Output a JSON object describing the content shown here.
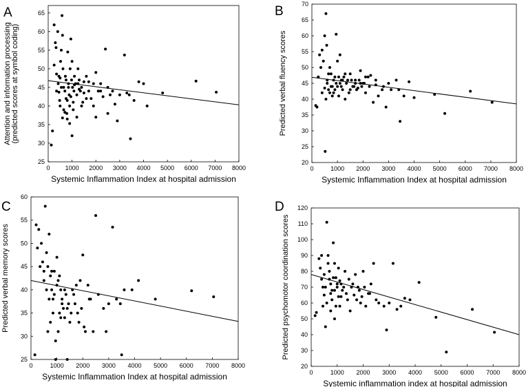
{
  "chart_data": [
    {
      "type": "scatter",
      "panel_label": "A",
      "xlabel": "Systemic Inflammation Index at hospital admission",
      "ylabel_lines": [
        "Attention and information processing",
        "(predicted scores at symbol coding)"
      ],
      "xlim": [
        0,
        8000
      ],
      "ylim": [
        25,
        67
      ],
      "xticks": [
        0,
        1000,
        2000,
        3000,
        4000,
        5000,
        6000,
        7000,
        8000
      ],
      "yticks": [
        25,
        30,
        35,
        40,
        45,
        50,
        55,
        60,
        65
      ],
      "trendline": {
        "x": [
          0,
          8000
        ],
        "y": [
          46.8,
          40.3
        ]
      },
      "points": [
        [
          130,
          29.5
        ],
        [
          180,
          33.3
        ],
        [
          250,
          61.8
        ],
        [
          300,
          57
        ],
        [
          330,
          55.7
        ],
        [
          350,
          48.6
        ],
        [
          250,
          51
        ],
        [
          400,
          60
        ],
        [
          420,
          46
        ],
        [
          450,
          43.7
        ],
        [
          480,
          41.5
        ],
        [
          500,
          47.5
        ],
        [
          520,
          52
        ],
        [
          550,
          55
        ],
        [
          580,
          64.3
        ],
        [
          600,
          59
        ],
        [
          620,
          50
        ],
        [
          650,
          45
        ],
        [
          700,
          44
        ],
        [
          720,
          48
        ],
        [
          750,
          42
        ],
        [
          780,
          38
        ],
        [
          800,
          36.5
        ],
        [
          820,
          54.5
        ],
        [
          850,
          46
        ],
        [
          880,
          43
        ],
        [
          900,
          40
        ],
        [
          920,
          50
        ],
        [
          950,
          58
        ],
        [
          980,
          47
        ],
        [
          1000,
          52
        ],
        [
          1020,
          45
        ],
        [
          1050,
          39
        ],
        [
          1080,
          44
        ],
        [
          1100,
          48
        ],
        [
          1150,
          46
        ],
        [
          1200,
          43
        ],
        [
          1250,
          50
        ],
        [
          1300,
          47
        ],
        [
          1350,
          44
        ],
        [
          1400,
          45
        ],
        [
          1450,
          41
        ],
        [
          1500,
          46.5
        ],
        [
          1600,
          48
        ],
        [
          1700,
          44
        ],
        [
          1800,
          42
        ],
        [
          1900,
          46
        ],
        [
          2000,
          49
        ],
        [
          2100,
          44
        ],
        [
          2200,
          46
        ],
        [
          2300,
          42.5
        ],
        [
          2400,
          55.3
        ],
        [
          2500,
          45
        ],
        [
          2600,
          43
        ],
        [
          2700,
          44
        ],
        [
          2800,
          40.5
        ],
        [
          2900,
          36
        ],
        [
          3000,
          43
        ],
        [
          3200,
          53.7
        ],
        [
          3300,
          43.5
        ],
        [
          3400,
          43
        ],
        [
          3450,
          31.2
        ],
        [
          3600,
          41.5
        ],
        [
          3800,
          46.5
        ],
        [
          4000,
          46
        ],
        [
          4150,
          40
        ],
        [
          4800,
          43.5
        ],
        [
          6200,
          46.7
        ],
        [
          7050,
          43.7
        ],
        [
          600,
          36.8
        ],
        [
          700,
          38.3
        ],
        [
          900,
          35.3
        ],
        [
          1000,
          32
        ],
        [
          1200,
          37
        ],
        [
          1400,
          40
        ],
        [
          2000,
          37
        ],
        [
          2500,
          38
        ],
        [
          500,
          40
        ],
        [
          650,
          39
        ],
        [
          800,
          41.5
        ],
        [
          950,
          42.5
        ],
        [
          1100,
          45.7
        ],
        [
          1300,
          44.5
        ],
        [
          1600,
          42
        ],
        [
          1900,
          40
        ],
        [
          2200,
          44
        ],
        [
          350,
          44
        ],
        [
          450,
          48
        ],
        [
          550,
          45
        ],
        [
          750,
          47
        ],
        [
          850,
          45
        ],
        [
          1050,
          41
        ],
        [
          1250,
          46
        ],
        [
          1500,
          43.5
        ],
        [
          1700,
          46.5
        ]
      ]
    },
    {
      "type": "scatter",
      "panel_label": "B",
      "xlabel": "Systemic Inflammation Index at hospital admission",
      "ylabel_lines": [
        "Predicted verbal fluency scores"
      ],
      "xlim": [
        0,
        8000
      ],
      "ylim": [
        20,
        70
      ],
      "xticks": [
        0,
        1000,
        2000,
        3000,
        4000,
        5000,
        6000,
        7000,
        8000
      ],
      "yticks": [
        20,
        25,
        30,
        35,
        40,
        45,
        50,
        55,
        60,
        65,
        70
      ],
      "trendline": {
        "x": [
          0,
          8000
        ],
        "y": [
          46.9,
          38.5
        ]
      },
      "points": [
        [
          150,
          38
        ],
        [
          200,
          37.5
        ],
        [
          250,
          47
        ],
        [
          300,
          54
        ],
        [
          350,
          50
        ],
        [
          400,
          55.5
        ],
        [
          450,
          52
        ],
        [
          500,
          60
        ],
        [
          520,
          23.5
        ],
        [
          550,
          67
        ],
        [
          580,
          57
        ],
        [
          600,
          45
        ],
        [
          650,
          43
        ],
        [
          700,
          50
        ],
        [
          750,
          48
        ],
        [
          800,
          44
        ],
        [
          850,
          46
        ],
        [
          900,
          43
        ],
        [
          950,
          60.5
        ],
        [
          1000,
          52
        ],
        [
          1050,
          47
        ],
        [
          1100,
          45
        ],
        [
          1150,
          44
        ],
        [
          1200,
          43
        ],
        [
          1300,
          40
        ],
        [
          1400,
          46
        ],
        [
          1500,
          48
        ],
        [
          1600,
          44
        ],
        [
          1700,
          45
        ],
        [
          1800,
          43.5
        ],
        [
          1900,
          49
        ],
        [
          2000,
          45
        ],
        [
          2100,
          42
        ],
        [
          2200,
          47
        ],
        [
          2300,
          47.5
        ],
        [
          2400,
          39
        ],
        [
          2500,
          44.5
        ],
        [
          2600,
          41
        ],
        [
          2800,
          44
        ],
        [
          2900,
          37.5
        ],
        [
          3000,
          45
        ],
        [
          3100,
          43
        ],
        [
          3300,
          46
        ],
        [
          3400,
          43
        ],
        [
          3450,
          33
        ],
        [
          3600,
          41
        ],
        [
          3800,
          45.5
        ],
        [
          4000,
          40.5
        ],
        [
          4800,
          41.5
        ],
        [
          5200,
          35.5
        ],
        [
          6200,
          42.5
        ],
        [
          7050,
          39
        ],
        [
          500,
          43.5
        ],
        [
          600,
          46
        ],
        [
          700,
          42
        ],
        [
          800,
          41
        ],
        [
          900,
          47
        ],
        [
          1000,
          44
        ],
        [
          1100,
          54
        ],
        [
          1200,
          46
        ],
        [
          1300,
          48
        ],
        [
          1500,
          43
        ],
        [
          1700,
          46
        ],
        [
          1900,
          45
        ],
        [
          2100,
          47
        ],
        [
          400,
          42
        ],
        [
          550,
          40
        ],
        [
          650,
          48
        ],
        [
          750,
          44
        ],
        [
          850,
          42
        ],
        [
          950,
          45
        ],
        [
          1050,
          41
        ],
        [
          1150,
          46
        ],
        [
          1250,
          47
        ],
        [
          1350,
          45
        ],
        [
          1450,
          42
        ],
        [
          1550,
          46
        ],
        [
          1650,
          44
        ],
        [
          1750,
          43
        ],
        [
          1850,
          46
        ],
        [
          1950,
          44
        ],
        [
          2050,
          45
        ],
        [
          2250,
          44
        ],
        [
          2500,
          46
        ],
        [
          2750,
          43
        ]
      ]
    },
    {
      "type": "scatter",
      "panel_label": "C",
      "xlabel": "Systemic Inflammation Index at hospital admission",
      "ylabel_lines": [
        "Predicted verbal memory scores"
      ],
      "xlim": [
        0,
        8000
      ],
      "ylim": [
        25,
        60
      ],
      "xticks": [
        0,
        1000,
        2000,
        3000,
        4000,
        5000,
        6000,
        7000,
        8000
      ],
      "yticks": [
        25,
        30,
        35,
        40,
        45,
        50,
        55,
        60
      ],
      "trendline": {
        "x": [
          0,
          8000
        ],
        "y": [
          42,
          33.2
        ]
      },
      "points": [
        [
          150,
          26
        ],
        [
          200,
          54
        ],
        [
          250,
          49
        ],
        [
          300,
          53
        ],
        [
          350,
          45
        ],
        [
          400,
          50
        ],
        [
          450,
          46
        ],
        [
          500,
          42
        ],
        [
          550,
          58
        ],
        [
          600,
          48
        ],
        [
          650,
          45
        ],
        [
          700,
          52
        ],
        [
          750,
          43
        ],
        [
          800,
          40
        ],
        [
          850,
          38
        ],
        [
          900,
          44
        ],
        [
          950,
          25
        ],
        [
          1000,
          47
        ],
        [
          1050,
          42
        ],
        [
          1100,
          35
        ],
        [
          1150,
          40
        ],
        [
          1200,
          38
        ],
        [
          1300,
          34
        ],
        [
          1400,
          25
        ],
        [
          1500,
          33
        ],
        [
          1600,
          40
        ],
        [
          1700,
          37
        ],
        [
          1800,
          35
        ],
        [
          1900,
          42
        ],
        [
          2000,
          47.5
        ],
        [
          2100,
          31
        ],
        [
          2200,
          41
        ],
        [
          2300,
          38
        ],
        [
          2400,
          31
        ],
        [
          2500,
          56
        ],
        [
          2600,
          39
        ],
        [
          2800,
          36
        ],
        [
          2900,
          31
        ],
        [
          3000,
          37
        ],
        [
          3150,
          53.5
        ],
        [
          3300,
          38
        ],
        [
          3450,
          37
        ],
        [
          3500,
          26
        ],
        [
          3600,
          40
        ],
        [
          3900,
          40
        ],
        [
          4150,
          42
        ],
        [
          4800,
          38
        ],
        [
          6200,
          39.8
        ],
        [
          7050,
          38.5
        ],
        [
          600,
          40
        ],
        [
          700,
          38
        ],
        [
          800,
          44
        ],
        [
          900,
          39
        ],
        [
          1000,
          41
        ],
        [
          1100,
          43
        ],
        [
          1200,
          37
        ],
        [
          1300,
          40
        ],
        [
          1400,
          36
        ],
        [
          500,
          44
        ],
        [
          650,
          31
        ],
        [
          750,
          33
        ],
        [
          850,
          35
        ],
        [
          950,
          29
        ],
        [
          1050,
          31
        ],
        [
          1150,
          34
        ],
        [
          1250,
          36
        ],
        [
          1350,
          39
        ],
        [
          1450,
          37
        ],
        [
          1550,
          35
        ],
        [
          1650,
          39
        ],
        [
          1750,
          41
        ],
        [
          1850,
          33
        ],
        [
          1950,
          36
        ],
        [
          2050,
          32
        ],
        [
          2250,
          38
        ]
      ]
    },
    {
      "type": "scatter",
      "panel_label": "D",
      "xlabel": "Systemic inflammation index at hospital admission",
      "ylabel_lines": [
        "Predicted psychomotor coordination scores"
      ],
      "xlim": [
        0,
        8000
      ],
      "ylim": [
        20,
        120
      ],
      "xticks": [
        0,
        1000,
        2000,
        3000,
        4000,
        5000,
        6000,
        7000,
        8000
      ],
      "yticks": [
        20,
        30,
        40,
        50,
        60,
        70,
        80,
        90,
        100,
        110,
        120
      ],
      "trendline": {
        "x": [
          0,
          8000
        ],
        "y": [
          78,
          40
        ]
      },
      "points": [
        [
          150,
          52
        ],
        [
          200,
          54
        ],
        [
          300,
          88
        ],
        [
          350,
          82
        ],
        [
          400,
          75
        ],
        [
          450,
          70
        ],
        [
          500,
          65
        ],
        [
          550,
          45
        ],
        [
          600,
          111
        ],
        [
          650,
          90
        ],
        [
          700,
          80
        ],
        [
          750,
          72
        ],
        [
          800,
          68
        ],
        [
          850,
          98
        ],
        [
          900,
          85
        ],
        [
          950,
          76
        ],
        [
          1000,
          70
        ],
        [
          1050,
          64
        ],
        [
          1100,
          58
        ],
        [
          1150,
          72
        ],
        [
          1200,
          68
        ],
        [
          1300,
          80
        ],
        [
          1400,
          62
        ],
        [
          1500,
          55
        ],
        [
          1600,
          72
        ],
        [
          1700,
          78
        ],
        [
          1800,
          70
        ],
        [
          1900,
          60
        ],
        [
          2000,
          80
        ],
        [
          2100,
          58
        ],
        [
          2200,
          66
        ],
        [
          2300,
          72
        ],
        [
          2400,
          85
        ],
        [
          2500,
          62
        ],
        [
          2600,
          60
        ],
        [
          2800,
          58
        ],
        [
          2900,
          43
        ],
        [
          3000,
          60
        ],
        [
          3150,
          85
        ],
        [
          3300,
          56
        ],
        [
          3450,
          58
        ],
        [
          3600,
          63
        ],
        [
          3800,
          62
        ],
        [
          4150,
          73
        ],
        [
          4800,
          51
        ],
        [
          5200,
          29
        ],
        [
          6200,
          56
        ],
        [
          7050,
          41.5
        ],
        [
          500,
          78
        ],
        [
          550,
          70
        ],
        [
          650,
          85
        ],
        [
          700,
          75
        ],
        [
          750,
          66
        ],
        [
          800,
          62
        ],
        [
          850,
          76
        ],
        [
          900,
          68
        ],
        [
          950,
          58
        ],
        [
          1000,
          72
        ],
        [
          1050,
          82
        ],
        [
          1150,
          64
        ],
        [
          1250,
          70
        ],
        [
          1350,
          66
        ],
        [
          1450,
          75
        ],
        [
          1550,
          70
        ],
        [
          1650,
          65
        ],
        [
          1750,
          62
        ],
        [
          1850,
          68
        ],
        [
          1950,
          64
        ],
        [
          2050,
          70
        ],
        [
          2250,
          66
        ],
        [
          400,
          90
        ],
        [
          450,
          58
        ],
        [
          600,
          60
        ],
        [
          750,
          55
        ],
        [
          900,
          50
        ],
        [
          1100,
          74
        ]
      ]
    }
  ]
}
